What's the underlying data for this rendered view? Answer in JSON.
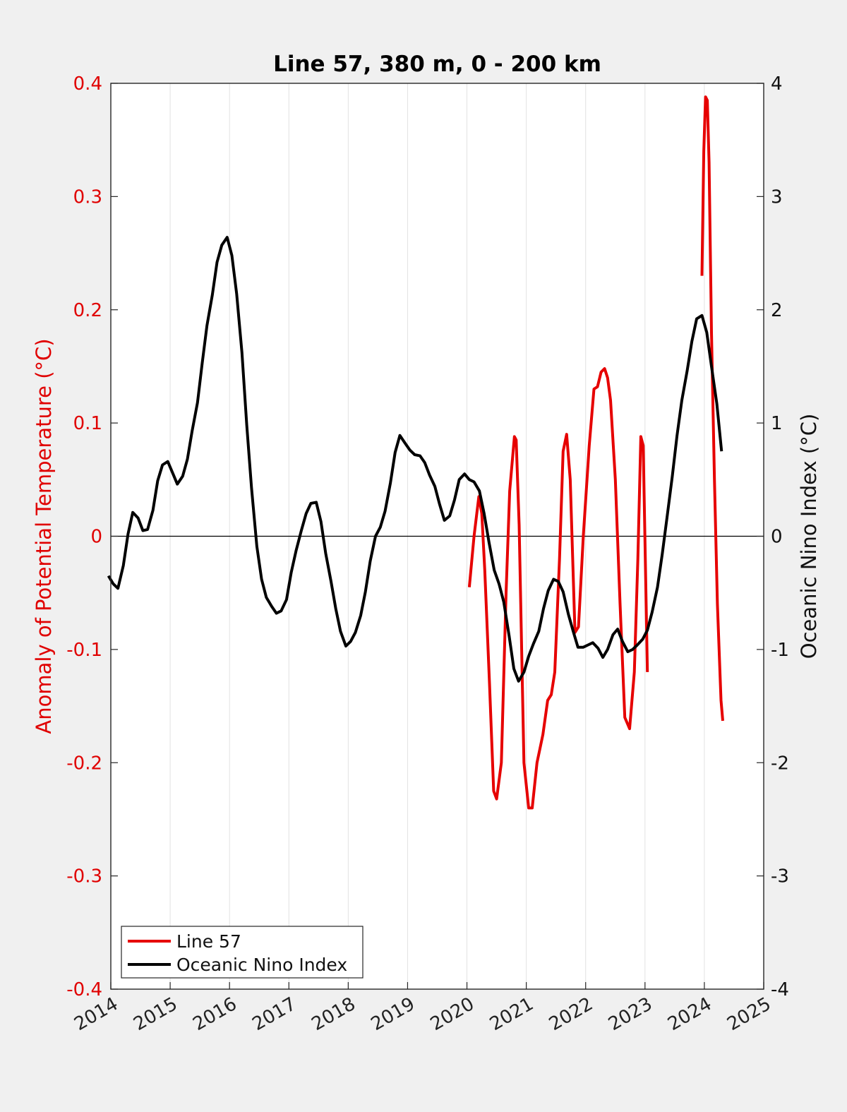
{
  "chart_data": {
    "type": "line",
    "title": "Line 57, 380 m, 0 - 200 km",
    "ylabel_left": "Anomaly of Potential Temperature (°C)",
    "ylabel_right": "Oceanic Nino Index (°C)",
    "xlim": [
      2014,
      2025
    ],
    "ylim_left": [
      -0.4,
      0.4
    ],
    "ylim_right": [
      -4,
      4
    ],
    "x_ticks": [
      "2014",
      "2015",
      "2016",
      "2017",
      "2018",
      "2019",
      "2020",
      "2021",
      "2022",
      "2023",
      "2024",
      "2025"
    ],
    "y_ticks_left": [
      "0.4",
      "0.3",
      "0.2",
      "0.1",
      "0",
      "-0.1",
      "-0.2",
      "-0.3",
      "-0.4"
    ],
    "y_ticks_right": [
      "4",
      "3",
      "2",
      "1",
      "0",
      "-1",
      "-2",
      "-3",
      "-4"
    ],
    "grid": "vertical gridlines at each year",
    "zero_line": true,
    "legend_position": "bottom-left",
    "series": [
      {
        "name": "Line 57",
        "axis": "left",
        "color": "#e60000",
        "segments": [
          {
            "x": [
              2020.04,
              2020.12,
              2020.2,
              2020.25,
              2020.3,
              2020.38,
              2020.45,
              2020.5,
              2020.58,
              2020.66,
              2020.72,
              2020.8,
              2020.83,
              2020.88,
              2020.96,
              2021.04,
              2021.1,
              2021.18,
              2021.28,
              2021.36,
              2021.42,
              2021.48,
              2021.56,
              2021.62,
              2021.68,
              2021.74,
              2021.82,
              2021.88,
              2021.96,
              2022.06,
              2022.14,
              2022.2,
              2022.26,
              2022.32,
              2022.37,
              2022.42,
              2022.5,
              2022.58,
              2022.66,
              2022.74,
              2022.82,
              2022.88,
              2022.93,
              2022.97,
              2023.04
            ],
            "y": [
              -0.045,
              0.0,
              0.035,
              0.02,
              -0.03,
              -0.13,
              -0.225,
              -0.232,
              -0.2,
              -0.05,
              0.04,
              0.088,
              0.085,
              0.01,
              -0.2,
              -0.24,
              -0.24,
              -0.2,
              -0.175,
              -0.145,
              -0.14,
              -0.12,
              -0.02,
              0.075,
              0.09,
              0.05,
              -0.085,
              -0.08,
              0.0,
              0.08,
              0.13,
              0.132,
              0.145,
              0.148,
              0.14,
              0.12,
              0.05,
              -0.06,
              -0.16,
              -0.17,
              -0.12,
              -0.02,
              0.088,
              0.08,
              -0.12
            ]
          },
          {
            "x": [
              2023.96,
              2023.99,
              2024.02,
              2024.05,
              2024.08,
              2024.12,
              2024.17,
              2024.22,
              2024.28,
              2024.31
            ],
            "y": [
              0.23,
              0.34,
              0.388,
              0.385,
              0.33,
              0.18,
              0.05,
              -0.06,
              -0.145,
              -0.163
            ]
          }
        ]
      },
      {
        "name": "Oceanic Nino Index",
        "axis": "right",
        "color": "#000000",
        "segments": [
          {
            "x": [
              2013.96,
              2014.04,
              2014.12,
              2014.21,
              2014.29,
              2014.37,
              2014.46,
              2014.54,
              2014.62,
              2014.71,
              2014.79,
              2014.87,
              2014.96,
              2015.04,
              2015.12,
              2015.21,
              2015.29,
              2015.37,
              2015.46,
              2015.54,
              2015.62,
              2015.71,
              2015.79,
              2015.87,
              2015.96,
              2016.04,
              2016.12,
              2016.21,
              2016.29,
              2016.37,
              2016.46,
              2016.54,
              2016.62,
              2016.71,
              2016.79,
              2016.87,
              2016.96,
              2017.04,
              2017.12,
              2017.21,
              2017.29,
              2017.37,
              2017.46,
              2017.54,
              2017.62,
              2017.71,
              2017.79,
              2017.87,
              2017.96,
              2018.04,
              2018.12,
              2018.21,
              2018.29,
              2018.37,
              2018.46,
              2018.54,
              2018.62,
              2018.71,
              2018.79,
              2018.87,
              2018.96,
              2019.04,
              2019.12,
              2019.21,
              2019.29,
              2019.37,
              2019.46,
              2019.54,
              2019.62,
              2019.71,
              2019.79,
              2019.87,
              2019.96,
              2020.04,
              2020.12,
              2020.21,
              2020.29,
              2020.37,
              2020.46,
              2020.54,
              2020.62,
              2020.71,
              2020.79,
              2020.87,
              2020.96,
              2021.04,
              2021.12,
              2021.21,
              2021.29,
              2021.37,
              2021.46,
              2021.54,
              2021.62,
              2021.71,
              2021.79,
              2021.87,
              2021.96,
              2022.04,
              2022.12,
              2022.21,
              2022.29,
              2022.37,
              2022.46,
              2022.54,
              2022.62,
              2022.71,
              2022.79,
              2022.87,
              2022.96,
              2023.04,
              2023.12,
              2023.21,
              2023.29,
              2023.37,
              2023.46,
              2023.54,
              2023.62,
              2023.71,
              2023.79,
              2023.87,
              2023.96,
              2024.04,
              2024.12,
              2024.21,
              2024.29
            ],
            "y": [
              -0.35,
              -0.42,
              -0.46,
              -0.26,
              0.02,
              0.21,
              0.16,
              0.05,
              0.06,
              0.23,
              0.49,
              0.63,
              0.66,
              0.56,
              0.46,
              0.53,
              0.68,
              0.93,
              1.18,
              1.53,
              1.86,
              2.13,
              2.42,
              2.57,
              2.64,
              2.48,
              2.14,
              1.62,
              0.98,
              0.43,
              -0.09,
              -0.38,
              -0.54,
              -0.62,
              -0.68,
              -0.66,
              -0.56,
              -0.32,
              -0.13,
              0.05,
              0.2,
              0.29,
              0.3,
              0.13,
              -0.15,
              -0.4,
              -0.64,
              -0.84,
              -0.97,
              -0.93,
              -0.85,
              -0.7,
              -0.49,
              -0.22,
              0.0,
              0.08,
              0.22,
              0.47,
              0.74,
              0.89,
              0.82,
              0.76,
              0.72,
              0.71,
              0.65,
              0.54,
              0.44,
              0.28,
              0.14,
              0.18,
              0.32,
              0.5,
              0.55,
              0.5,
              0.48,
              0.4,
              0.2,
              -0.05,
              -0.3,
              -0.42,
              -0.58,
              -0.88,
              -1.17,
              -1.28,
              -1.2,
              -1.06,
              -0.95,
              -0.84,
              -0.64,
              -0.48,
              -0.38,
              -0.4,
              -0.49,
              -0.69,
              -0.84,
              -0.98,
              -0.98,
              -0.96,
              -0.94,
              -0.99,
              -1.07,
              -1.0,
              -0.87,
              -0.82,
              -0.93,
              -1.02,
              -1.0,
              -0.96,
              -0.91,
              -0.83,
              -0.67,
              -0.45,
              -0.16,
              0.16,
              0.53,
              0.89,
              1.2,
              1.46,
              1.72,
              1.92,
              1.95,
              1.8,
              1.5,
              1.17,
              0.75
            ]
          }
        ]
      }
    ]
  }
}
